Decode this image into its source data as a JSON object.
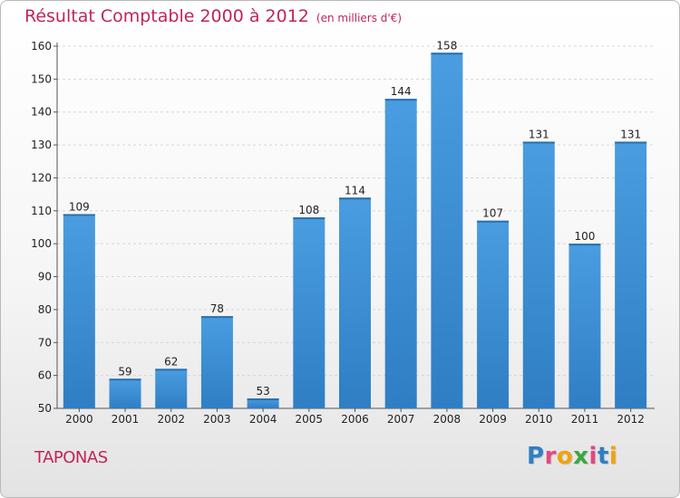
{
  "chart_data": {
    "type": "bar",
    "title": "Résultat Comptable 2000 à 2012",
    "unit_label": "(en milliers d'€)",
    "categories": [
      "2000",
      "2001",
      "2002",
      "2003",
      "2004",
      "2005",
      "2006",
      "2007",
      "2008",
      "2009",
      "2010",
      "2011",
      "2012"
    ],
    "values": [
      109,
      59,
      62,
      78,
      53,
      108,
      114,
      144,
      158,
      107,
      131,
      100,
      131
    ],
    "ylim": [
      50,
      160
    ],
    "yticks": [
      50,
      60,
      70,
      80,
      90,
      100,
      110,
      120,
      130,
      140,
      150,
      160
    ],
    "grid": true,
    "xlabel": "",
    "ylabel": "",
    "bar_color": "#4a9de0",
    "bar_color_dark": "#2f7ec4"
  },
  "page": {
    "town": "TAPONAS",
    "brand": "Proxiti",
    "accent": "#c0245c"
  }
}
